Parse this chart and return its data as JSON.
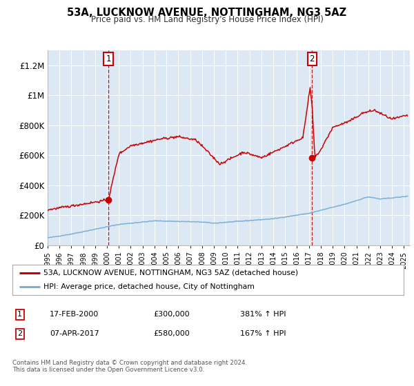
{
  "title": "53A, LUCKNOW AVENUE, NOTTINGHAM, NG3 5AZ",
  "subtitle": "Price paid vs. HM Land Registry's House Price Index (HPI)",
  "plot_bg_color": "#dce9f5",
  "outer_bg_color": "#ffffff",
  "red_line_color": "#cc0000",
  "blue_line_color": "#7bafd4",
  "transaction1_date": 2000.12,
  "transaction1_price": 300000,
  "transaction2_date": 2017.27,
  "transaction2_price": 580000,
  "annotation1": [
    "1",
    "17-FEB-2000",
    "£300,000",
    "381% ↑ HPI"
  ],
  "annotation2": [
    "2",
    "07-APR-2017",
    "£580,000",
    "167% ↑ HPI"
  ],
  "legend1": "53A, LUCKNOW AVENUE, NOTTINGHAM, NG3 5AZ (detached house)",
  "legend2": "HPI: Average price, detached house, City of Nottingham",
  "footer": "Contains HM Land Registry data © Crown copyright and database right 2024.\nThis data is licensed under the Open Government Licence v3.0.",
  "ylim": [
    0,
    1300000
  ],
  "yticks": [
    0,
    200000,
    400000,
    600000,
    800000,
    1000000,
    1200000
  ],
  "ytick_labels": [
    "£0",
    "£200K",
    "£400K",
    "£600K",
    "£800K",
    "£1M",
    "£1.2M"
  ],
  "xmin": 1995.0,
  "xmax": 2025.5
}
